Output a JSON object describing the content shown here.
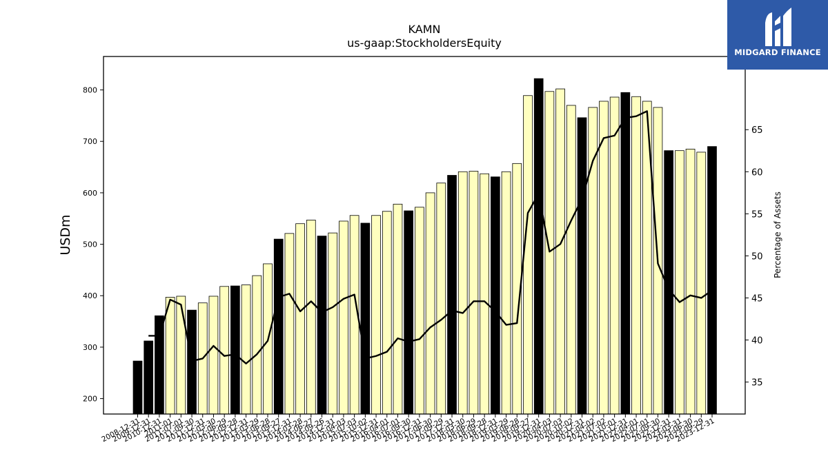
{
  "logo": {
    "text": "MIDGARD FINANCE",
    "bg_color": "#2e5aa8"
  },
  "chart_data": {
    "type": "bar",
    "title": "KAMN",
    "subtitle": "us-gaap:StockholdersEquity",
    "ylabel": "USDm",
    "y2label": "Percentage of Assets",
    "ylim": [
      170,
      865
    ],
    "y2lim": [
      31.2,
      73.7
    ],
    "yticks": [
      200,
      300,
      400,
      500,
      600,
      700,
      800
    ],
    "y2ticks": [
      35,
      40,
      45,
      50,
      55,
      60,
      65
    ],
    "colors": {
      "annual_bar": "#000000",
      "quarter_bar": "#ffffbf",
      "line": "#000000"
    },
    "categories": [
      "2008-12-31",
      "2009-12-31",
      "2010-12-31",
      "2011-01",
      "2011-07-01",
      "2011-09-30",
      "2011-12-31",
      "2012-03-30",
      "2012-06-29",
      "2012-09-28",
      "2012-12-31",
      "2013-03-29",
      "2013-06-28",
      "2013-09-27",
      "2013-12-31",
      "2014-03-28",
      "2014-06-27",
      "2014-09-26",
      "2014-12-31",
      "2015-04-03",
      "2015-07-03",
      "2015-10-02",
      "2015-12-31",
      "2016-04-01",
      "2016-07-01",
      "2016-09-30",
      "2016-12-31",
      "2017-06-30",
      "2017-09-29",
      "2017-12-31",
      "2018-03-30",
      "2018-06-29",
      "2018-09-28",
      "2018-12-31",
      "2019-03-29",
      "2019-06-28",
      "2019-09-27",
      "2019-12-31",
      "2020-04-03",
      "2020-07-03",
      "2020-10-02",
      "2020-12-31",
      "2021-04-02",
      "2021-07-02",
      "2021-10-01",
      "2021-12-31",
      "2022-04-01",
      "2022-07-01",
      "2022-09-30",
      "2022-12-31",
      "2023-03-31",
      "2023-06-30",
      "2023-09-29",
      "2023-12-31"
    ],
    "visible_tick_labels": [
      "2008-12-31",
      "2009-12-31",
      "2010-12-31",
      "2011-01",
      "2011-07-01",
      "2011-09-30",
      "2011-12-31",
      "2012-03-30",
      "2012-06-29",
      "2012-09-28",
      "2012-12-31",
      "2013-03-29",
      "2013-06-28",
      "2013-09-27",
      "2013-12-31",
      "2014-03-28",
      "2014-06-27",
      "2014-09-26",
      "2014-12-31",
      "2015-04-03",
      "2015-07-03",
      "2015-10-02",
      "2015-12-31",
      "2016-04-01",
      "2016-07-01",
      "2016-09-30",
      "2016-12-31",
      "2017-06-30",
      "2017-09-29",
      "2017-12-31",
      "2018-03-30",
      "2018-06-29",
      "2018-09-28",
      "2018-12-31",
      "2019-03-29",
      "2019-06-28",
      "2019-09-27",
      "2019-12-31",
      "2020-04-03",
      "2020-07-03",
      "2020-10-02",
      "2020-12-31",
      "2021-04-02",
      "2021-07-02",
      "2021-10-01",
      "2021-12-31",
      "2022-04-01",
      "2022-07-01",
      "2022-09-30",
      "2022-12-31",
      "2023-03-31",
      "2023-06-30",
      "2023-09-29",
      "2023-12-31"
    ],
    "series": [
      {
        "axis": "left",
        "kind": "bar",
        "values": [
          273,
          312,
          361,
          397,
          399,
          372,
          386,
          399,
          418,
          419,
          421,
          439,
          462,
          510,
          521,
          540,
          547,
          516,
          522,
          545,
          556,
          541,
          556,
          564,
          578,
          565,
          572,
          600,
          619,
          634,
          641,
          642,
          637,
          631,
          641,
          657,
          789,
          822,
          797,
          802,
          770,
          746,
          766,
          778,
          786,
          795,
          787,
          778,
          766,
          682,
          682,
          685,
          679,
          690
        ],
        "annual": [
          true,
          true,
          true,
          false,
          false,
          true,
          false,
          false,
          false,
          true,
          false,
          false,
          false,
          true,
          false,
          false,
          false,
          true,
          false,
          false,
          false,
          true,
          false,
          false,
          false,
          true,
          false,
          false,
          false,
          true,
          false,
          false,
          false,
          true,
          false,
          false,
          false,
          true,
          false,
          false,
          false,
          true,
          false,
          false,
          false,
          true,
          false,
          false,
          false,
          true,
          false,
          false,
          false,
          true
        ]
      },
      {
        "axis": "right",
        "kind": "line",
        "values": [
          null,
          40.5,
          40.5,
          44.8,
          44.2,
          37.5,
          37.8,
          39.3,
          38.1,
          38.3,
          37.2,
          38.3,
          39.9,
          45.1,
          45.5,
          43.4,
          44.6,
          43.3,
          43.9,
          44.9,
          45.4,
          37.8,
          38.1,
          38.6,
          40.2,
          39.8,
          40.1,
          41.5,
          42.4,
          43.5,
          43.2,
          44.6,
          44.6,
          43.4,
          41.8,
          42.0,
          55.1,
          57.4,
          50.5,
          51.4,
          54.2,
          56.8,
          61.3,
          64.0,
          64.3,
          66.4,
          66.6,
          67.2,
          49.1,
          46.0,
          44.5,
          45.3,
          45.0,
          45.9
        ]
      }
    ]
  }
}
